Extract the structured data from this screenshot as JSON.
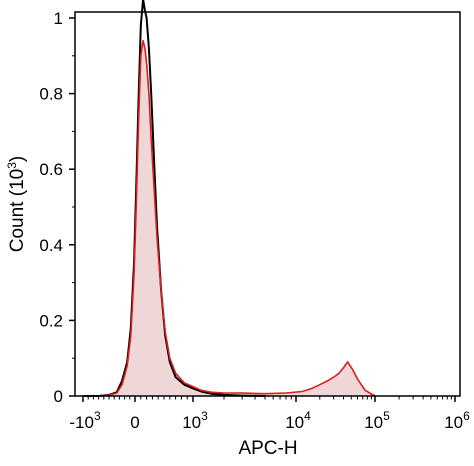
{
  "chart_data": {
    "type": "area",
    "title": "",
    "xlabel": "APC-H",
    "ylabel": {
      "prefix": "Count  (10",
      "exp": "3",
      "suffix": ")"
    },
    "x_scale": "biexponential",
    "x_ticks": [
      {
        "base": "-10",
        "exp": "3",
        "value": -1000
      },
      {
        "base": "0",
        "exp": "",
        "value": 0
      },
      {
        "base": "10",
        "exp": "3",
        "value": 1000
      },
      {
        "base": "10",
        "exp": "4",
        "value": 10000
      },
      {
        "base": "10",
        "exp": "5",
        "value": 100000
      },
      {
        "base": "10",
        "exp": "6",
        "value": 1000000
      }
    ],
    "y_ticks": [
      "0",
      "0.2",
      "0.4",
      "0.6",
      "0.8",
      "1"
    ],
    "ylim": [
      0,
      1
    ],
    "grid": false,
    "colors": {
      "black_series": "#000000",
      "red_series": "#d81e1e",
      "red_fill": "#f0d7d7"
    },
    "series": [
      {
        "color": "black",
        "x": [
          -1000,
          -700,
          -500,
          -350,
          -250,
          -150,
          -80,
          -20,
          20,
          60,
          100,
          140,
          170,
          200,
          240,
          280,
          330,
          380,
          450,
          520,
          600,
          700,
          850,
          1000,
          1200,
          1500,
          2000,
          3000,
          5000
        ],
        "y": [
          0,
          0,
          0.003,
          0.01,
          0.04,
          0.09,
          0.18,
          0.35,
          0.55,
          0.78,
          0.98,
          1.05,
          1.02,
          1.0,
          0.92,
          0.8,
          0.62,
          0.45,
          0.28,
          0.16,
          0.09,
          0.05,
          0.03,
          0.02,
          0.012,
          0.006,
          0.003,
          0.001,
          0
        ]
      },
      {
        "color": "red",
        "x": [
          -1000,
          -700,
          -500,
          -350,
          -250,
          -150,
          -80,
          -20,
          20,
          60,
          100,
          140,
          170,
          200,
          240,
          280,
          330,
          380,
          450,
          520,
          600,
          700,
          850,
          1000,
          1200,
          1500,
          2000,
          3000,
          5000,
          8000,
          12000,
          16000,
          20000,
          25000,
          30000,
          35000,
          40000,
          45000,
          52000,
          60000,
          75000,
          100000
        ],
        "y": [
          0,
          0,
          0.002,
          0.008,
          0.03,
          0.08,
          0.16,
          0.32,
          0.5,
          0.72,
          0.9,
          0.94,
          0.92,
          0.88,
          0.8,
          0.68,
          0.55,
          0.42,
          0.28,
          0.17,
          0.1,
          0.06,
          0.035,
          0.025,
          0.015,
          0.01,
          0.008,
          0.008,
          0.006,
          0.008,
          0.012,
          0.02,
          0.03,
          0.04,
          0.05,
          0.06,
          0.075,
          0.09,
          0.07,
          0.045,
          0.015,
          0
        ]
      }
    ]
  }
}
